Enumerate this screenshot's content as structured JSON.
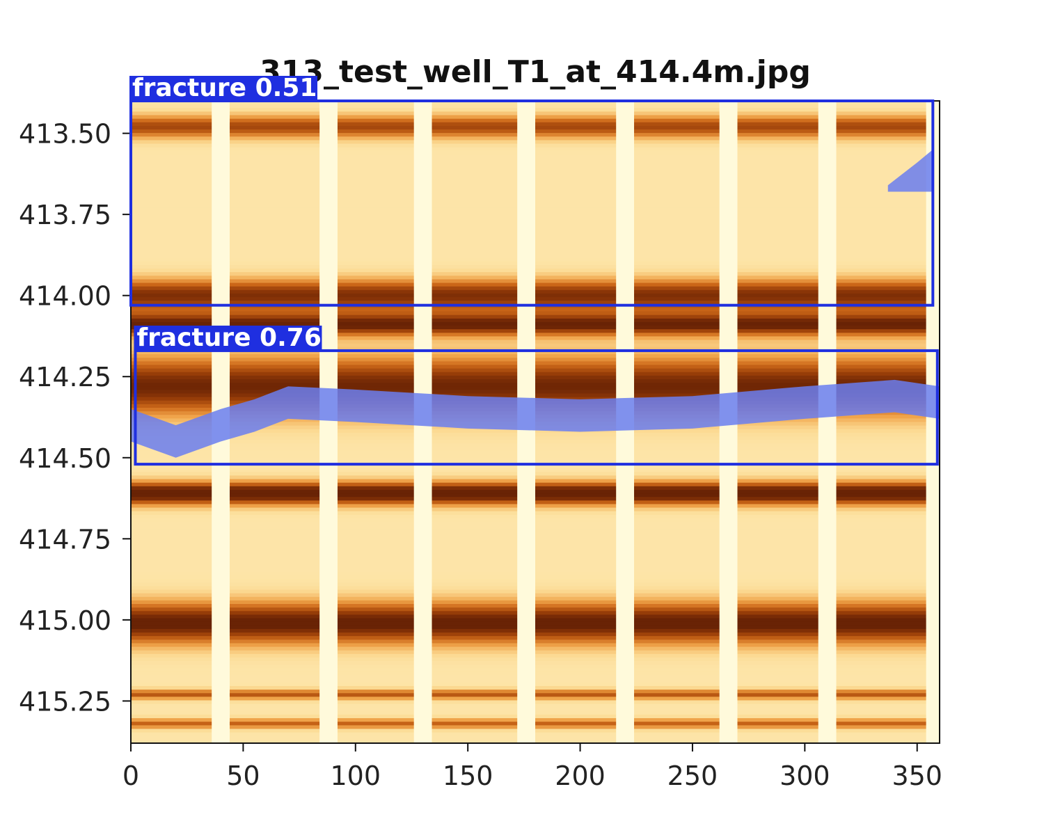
{
  "chart_data": {
    "type": "heatmap",
    "title": "313_test_well_T1_at_414.4m.jpg",
    "xlabel": "",
    "ylabel": "",
    "xlim": [
      0,
      360
    ],
    "ylim": [
      415.38,
      413.4
    ],
    "x_ticks": [
      0,
      50,
      100,
      150,
      200,
      250,
      300,
      350
    ],
    "y_ticks": [
      413.5,
      413.75,
      414.0,
      414.25,
      414.5,
      414.75,
      415.0,
      415.25
    ],
    "y_tick_labels": [
      "413.50",
      "413.75",
      "414.00",
      "414.25",
      "414.50",
      "414.75",
      "415.00",
      "415.25"
    ],
    "x_tick_labels": [
      "0",
      "50",
      "100",
      "150",
      "200",
      "250",
      "300",
      "350"
    ],
    "colormap": "YlOrBr",
    "grid": false,
    "pad_gaps_x": [
      [
        36,
        44
      ],
      [
        84,
        92
      ],
      [
        126,
        134
      ],
      [
        172,
        180
      ],
      [
        216,
        224
      ],
      [
        262,
        270
      ],
      [
        306,
        314
      ],
      [
        354,
        360
      ]
    ],
    "bands": [
      {
        "depth": 413.48,
        "half_width": 0.035,
        "intensity": 0.62
      },
      {
        "depth": 414.0,
        "half_width": 0.05,
        "intensity": 0.75
      },
      {
        "depth": 414.09,
        "half_width": 0.035,
        "intensity": 0.82
      },
      {
        "depth": 414.28,
        "half_width": 0.09,
        "intensity": 0.8
      },
      {
        "depth": 414.61,
        "half_width": 0.035,
        "intensity": 0.95
      },
      {
        "depth": 415.01,
        "half_width": 0.065,
        "intensity": 0.85
      },
      {
        "depth": 415.23,
        "half_width": 0.015,
        "intensity": 0.55
      },
      {
        "depth": 415.32,
        "half_width": 0.015,
        "intensity": 0.5
      }
    ],
    "fracture_trace": {
      "color": "#6a7ef0",
      "points": [
        [
          0,
          414.4
        ],
        [
          20,
          414.45
        ],
        [
          40,
          414.4
        ],
        [
          55,
          414.37
        ],
        [
          70,
          414.33
        ],
        [
          100,
          414.34
        ],
        [
          150,
          414.36
        ],
        [
          200,
          414.37
        ],
        [
          250,
          414.36
        ],
        [
          300,
          414.33
        ],
        [
          340,
          414.31
        ],
        [
          360,
          414.33
        ]
      ],
      "thickness": 0.1
    },
    "detections": [
      {
        "label": "fracture 0.51",
        "class": "fracture",
        "score": 0.51,
        "x_range": [
          0,
          357
        ],
        "y_range": [
          413.4,
          414.03
        ]
      },
      {
        "label": "fracture 0.76",
        "class": "fracture",
        "score": 0.76,
        "x_range": [
          2,
          359
        ],
        "y_range": [
          414.17,
          414.52
        ]
      }
    ],
    "box_color": "#1f2fe0"
  }
}
